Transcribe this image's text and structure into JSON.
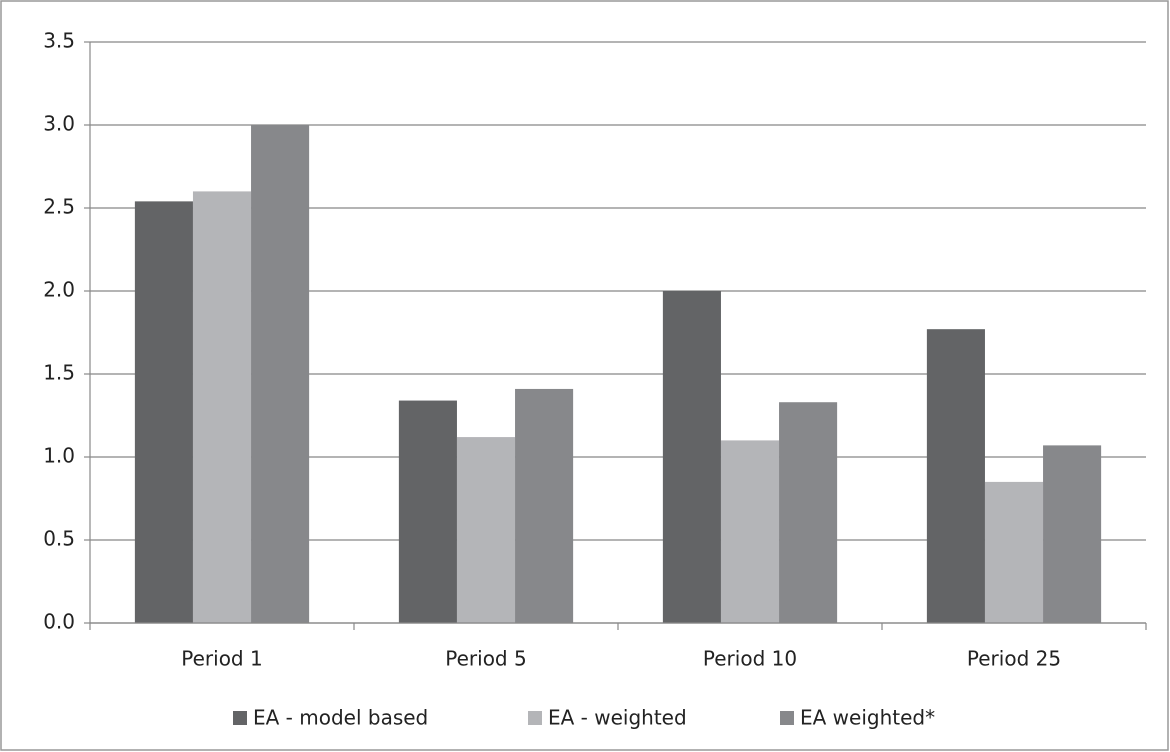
{
  "chart_data": {
    "type": "bar",
    "categories": [
      "Period 1",
      "Period 5",
      "Period 10",
      "Period 25"
    ],
    "series": [
      {
        "name": "EA - model based",
        "color": "#636466",
        "values": [
          2.54,
          1.34,
          2.0,
          1.77
        ]
      },
      {
        "name": "EA - weighted",
        "color": "#b4b5b8",
        "values": [
          2.6,
          1.12,
          1.1,
          0.85
        ]
      },
      {
        "name": "EA weighted*",
        "color": "#87888b",
        "values": [
          3.0,
          1.41,
          1.33,
          1.07
        ]
      }
    ],
    "ylim": [
      0,
      3.5
    ],
    "yticks": [
      {
        "value": 0,
        "label": "0.0"
      },
      0.5,
      {
        "value": 1,
        "label": "1.0"
      },
      1.5,
      {
        "value": 2,
        "label": "2.0"
      },
      2.5,
      {
        "value": 3,
        "label": "3.0"
      },
      3.5
    ],
    "grid": true,
    "legend": "bottom"
  }
}
